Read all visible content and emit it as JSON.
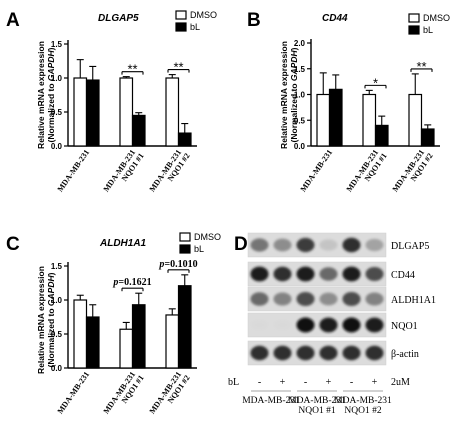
{
  "panels": {
    "A": {
      "letter": "A"
    },
    "B": {
      "letter": "B"
    },
    "C": {
      "letter": "C"
    },
    "D": {
      "letter": "D"
    }
  },
  "chart_data": [
    {
      "id": "A",
      "type": "bar",
      "title": "DLGAP5",
      "ylabel_line1": "Relative mRNA expression",
      "ylabel_line2_pre": "(Normalized to ",
      "ylabel_line2_em": "GAPDH",
      "ylabel_line2_post": ")",
      "ylim": [
        0,
        1.5
      ],
      "yticks": [
        "0.0",
        "0.5",
        "1.0",
        "1.5"
      ],
      "categories": [
        [
          "MDA-MB-231"
        ],
        [
          "MDA-MB-231",
          "NQO1 #1"
        ],
        [
          "MDA-MB-231",
          "NQO1 #2"
        ]
      ],
      "series": [
        {
          "name": "DMSO",
          "values": [
            1.0,
            1.0,
            1.0
          ],
          "errors": [
            0.27,
            0.02,
            0.05
          ]
        },
        {
          "name": "bL",
          "values": [
            0.97,
            0.45,
            0.19
          ],
          "errors": [
            0.2,
            0.04,
            0.14
          ]
        }
      ],
      "annotations": [
        {
          "group": 1,
          "text": "**"
        },
        {
          "group": 2,
          "text": "**"
        }
      ],
      "legend": "top-right"
    },
    {
      "id": "B",
      "type": "bar",
      "title": "CD44",
      "ylabel_line1": "Relative mRNA expression",
      "ylabel_line2_pre": "(Normalized to ",
      "ylabel_line2_em": "GAPDH",
      "ylabel_line2_post": ")",
      "ylim": [
        0,
        2.0
      ],
      "yticks": [
        "0.0",
        "0.5",
        "1.0",
        "1.5",
        "2.0"
      ],
      "categories": [
        [
          "MDA-MB-231"
        ],
        [
          "MDA-MB-231",
          "NQO1 #1"
        ],
        [
          "MDA-MB-231",
          "NQO1 #2"
        ]
      ],
      "series": [
        {
          "name": "DMSO",
          "values": [
            1.0,
            1.0,
            1.0
          ],
          "errors": [
            0.42,
            0.08,
            0.4
          ]
        },
        {
          "name": "bL",
          "values": [
            1.1,
            0.4,
            0.33
          ],
          "errors": [
            0.28,
            0.18,
            0.08
          ]
        }
      ],
      "annotations": [
        {
          "group": 1,
          "text": "*"
        },
        {
          "group": 2,
          "text": "**"
        }
      ],
      "legend": "top-right"
    },
    {
      "id": "C",
      "type": "bar",
      "title": "ALDH1A1",
      "ylabel_line1": "Relative mRNA expression",
      "ylabel_line2_pre": "(Normalized to ",
      "ylabel_line2_em": "GAPDH",
      "ylabel_line2_post": ")",
      "ylim": [
        0,
        1.5
      ],
      "yticks": [
        "0.0",
        "0.5",
        "1.0",
        "1.5"
      ],
      "categories": [
        [
          "MDA-MB-231"
        ],
        [
          "MDA-MB-231",
          "NQO1 #1"
        ],
        [
          "MDA-MB-231",
          "NQO1 #2"
        ]
      ],
      "series": [
        {
          "name": "DMSO",
          "values": [
            1.0,
            0.57,
            0.78
          ],
          "errors": [
            0.07,
            0.1,
            0.09
          ]
        },
        {
          "name": "bL",
          "values": [
            0.75,
            0.93,
            1.21
          ],
          "errors": [
            0.18,
            0.17,
            0.16
          ]
        }
      ],
      "annotations": [
        {
          "group": 1,
          "p": "p",
          "text": "=0.1621"
        },
        {
          "group": 2,
          "p": "p",
          "text": "=0.1010"
        }
      ],
      "legend": "top-right"
    }
  ],
  "western_blot": {
    "proteins": [
      "DLGAP5",
      "CD44",
      "ALDH1A1",
      "NQO1",
      "β-actin"
    ],
    "treatment_label": "bL",
    "lane_signs": [
      "-",
      "+",
      "-",
      "+",
      "-",
      "+"
    ],
    "dose": "2uM",
    "groups": [
      [
        "MDA-MB-231"
      ],
      [
        "MDA-MB-231",
        "NQO1 #1"
      ],
      [
        "MDA-MB-231",
        "NQO1 #2"
      ]
    ],
    "band_intensity": [
      [
        0.65,
        0.55,
        0.85,
        0.25,
        0.9,
        0.45
      ],
      [
        0.95,
        0.9,
        0.95,
        0.7,
        0.95,
        0.8
      ],
      [
        0.7,
        0.6,
        0.8,
        0.55,
        0.8,
        0.6
      ],
      [
        0.05,
        0.05,
        0.98,
        0.95,
        0.98,
        0.95
      ],
      [
        0.9,
        0.9,
        0.9,
        0.9,
        0.9,
        0.9
      ]
    ]
  }
}
